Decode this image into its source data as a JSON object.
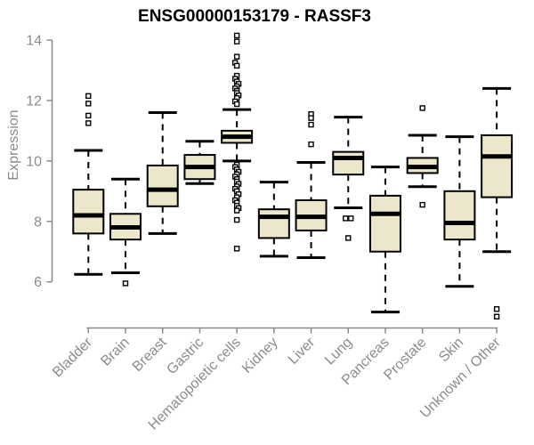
{
  "title": "ENSG00000153179 - RASSF3",
  "colors": {
    "box_fill": "#ece7cb",
    "box_border": "#000000",
    "median": "#000000",
    "whisker": "#000000",
    "outlier_stroke": "#000000",
    "outlier_fill": "#ffffff",
    "axis": "#8b8b8b",
    "tick_label": "#8b8b8b",
    "title_color": "#000000",
    "background": "#ffffff"
  },
  "chart_data": {
    "type": "boxplot",
    "title": "ENSG00000153179 - RASSF3",
    "xlabel": "",
    "ylabel": "Expression",
    "ylim": [
      4.6,
      14.3
    ],
    "yticks": [
      6,
      8,
      10,
      12,
      14
    ],
    "grid": "off",
    "legend": "none",
    "categories": [
      "Bladder",
      "Brain",
      "Breast",
      "Gastric",
      "Hematopoietic cells",
      "Kidney",
      "Liver",
      "Lung",
      "Pancreas",
      "Prostate",
      "Skin",
      "Unknown / Other"
    ],
    "boxes": [
      {
        "name": "Bladder",
        "whisker_low": 6.25,
        "q1": 7.6,
        "median": 8.2,
        "q3": 9.05,
        "whisker_high": 10.35,
        "outliers": [
          {
            "v": 12.15
          },
          {
            "v": 11.9
          },
          {
            "v": 11.5
          },
          {
            "v": 11.25
          }
        ]
      },
      {
        "name": "Brain",
        "whisker_low": 6.3,
        "q1": 7.4,
        "median": 7.8,
        "q3": 8.25,
        "whisker_high": 9.4,
        "outliers": [
          {
            "v": 5.95
          }
        ]
      },
      {
        "name": "Breast",
        "whisker_low": 7.6,
        "q1": 8.5,
        "median": 9.05,
        "q3": 9.85,
        "whisker_high": 11.6,
        "outliers": []
      },
      {
        "name": "Gastric",
        "whisker_low": 9.25,
        "q1": 9.4,
        "median": 9.8,
        "q3": 10.2,
        "whisker_high": 10.65,
        "outliers": []
      },
      {
        "name": "Hematopoietic cells",
        "whisker_low": 10.0,
        "q1": 10.6,
        "median": 10.8,
        "q3": 11.0,
        "whisker_high": 11.7,
        "outliers": [
          {
            "v": 14.15
          },
          {
            "v": 13.95
          },
          {
            "v": 13.45
          },
          {
            "v": 13.25,
            "dx": -2
          },
          {
            "v": 13.15
          },
          {
            "v": 12.82
          },
          {
            "v": 12.72,
            "dx": -2
          },
          {
            "v": 12.63
          },
          {
            "v": 12.55,
            "dx": 2
          },
          {
            "v": 12.47
          },
          {
            "v": 12.4,
            "dx": -2
          },
          {
            "v": 12.32
          },
          {
            "v": 12.25
          },
          {
            "v": 12.17,
            "dx": 2
          },
          {
            "v": 12.08
          },
          {
            "v": 11.97,
            "dx": -2
          },
          {
            "v": 11.88
          },
          {
            "v": 9.88
          },
          {
            "v": 9.8,
            "dx": -2
          },
          {
            "v": 9.72
          },
          {
            "v": 9.64,
            "dx": 2
          },
          {
            "v": 9.56
          },
          {
            "v": 9.48,
            "dx": -2
          },
          {
            "v": 9.4
          },
          {
            "v": 9.32
          },
          {
            "v": 9.24,
            "dx": 2
          },
          {
            "v": 9.16
          },
          {
            "v": 9.08,
            "dx": -2
          },
          {
            "v": 9.0
          },
          {
            "v": 8.9,
            "dx": 2
          },
          {
            "v": 8.8
          },
          {
            "v": 8.7,
            "dx": -2
          },
          {
            "v": 8.62
          },
          {
            "v": 8.52
          },
          {
            "v": 8.44,
            "dx": 2
          },
          {
            "v": 8.36
          },
          {
            "v": 8.05
          },
          {
            "v": 7.1
          }
        ]
      },
      {
        "name": "Kidney",
        "whisker_low": 6.85,
        "q1": 7.45,
        "median": 8.15,
        "q3": 8.4,
        "whisker_high": 9.3,
        "outliers": []
      },
      {
        "name": "Liver",
        "whisker_low": 6.8,
        "q1": 7.7,
        "median": 8.15,
        "q3": 8.7,
        "whisker_high": 9.95,
        "outliers": [
          {
            "v": 11.55
          },
          {
            "v": 11.42
          },
          {
            "v": 11.2
          },
          {
            "v": 10.55
          }
        ]
      },
      {
        "name": "Lung",
        "whisker_low": 8.45,
        "q1": 9.55,
        "median": 10.1,
        "q3": 10.3,
        "whisker_high": 11.45,
        "outliers": [
          {
            "v": 8.1,
            "dx": -3
          },
          {
            "v": 8.1,
            "dx": 3
          },
          {
            "v": 7.45
          }
        ]
      },
      {
        "name": "Pancreas",
        "whisker_low": 5.0,
        "q1": 7.0,
        "median": 8.25,
        "q3": 8.85,
        "whisker_high": 9.8,
        "outliers": []
      },
      {
        "name": "Prostate",
        "whisker_low": 9.15,
        "q1": 9.6,
        "median": 9.8,
        "q3": 10.1,
        "whisker_high": 10.85,
        "outliers": [
          {
            "v": 11.75
          },
          {
            "v": 8.55
          }
        ]
      },
      {
        "name": "Skin",
        "whisker_low": 5.85,
        "q1": 7.4,
        "median": 7.95,
        "q3": 9.0,
        "whisker_high": 10.8,
        "outliers": []
      },
      {
        "name": "Unknown / Other",
        "whisker_low": 7.0,
        "q1": 8.8,
        "median": 10.15,
        "q3": 10.85,
        "whisker_high": 12.4,
        "outliers": [
          {
            "v": 5.1
          },
          {
            "v": 4.85
          }
        ]
      }
    ]
  }
}
